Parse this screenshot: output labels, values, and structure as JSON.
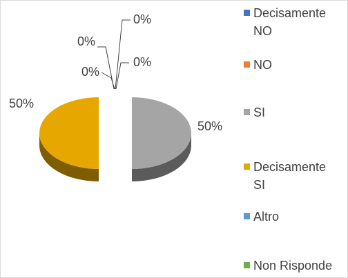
{
  "chart_data": {
    "type": "pie",
    "categories": [
      "Decisamente NO",
      "NO",
      "SI",
      "Decisamente SI",
      "Altro",
      "Non Risponde"
    ],
    "values": [
      0,
      0,
      50,
      50,
      0,
      0
    ],
    "value_labels": [
      "0%",
      "0%",
      "50%",
      "50%",
      "0%",
      "0%"
    ],
    "colors": [
      "#4472c4",
      "#ed7d31",
      "#a5a5a5",
      "#e6a800",
      "#5b9bd5",
      "#70ad47"
    ],
    "legend": "right"
  }
}
